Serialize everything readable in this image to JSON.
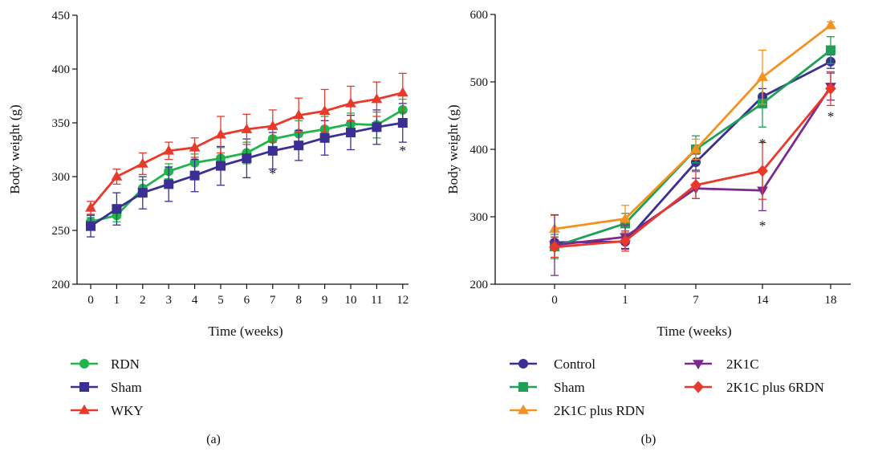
{
  "chart_data": [
    {
      "type": "line",
      "panel_label": "(a)",
      "xlabel": "Time (weeks)",
      "ylabel": "Body weight (g)",
      "x": [
        0,
        1,
        2,
        3,
        4,
        5,
        6,
        7,
        8,
        9,
        10,
        11,
        12
      ],
      "x_tick_labels": [
        "0",
        "1",
        "2",
        "3",
        "4",
        "5",
        "6",
        "7",
        "8",
        "9",
        "10",
        "11",
        "12"
      ],
      "ylim": [
        200,
        450
      ],
      "y_ticks": [
        200,
        250,
        300,
        350,
        400,
        450
      ],
      "grid": false,
      "legend_position": "bottom",
      "series": [
        {
          "name": "RDN",
          "color": "#1fb54a",
          "marker": "circle",
          "values": [
            258,
            264,
            289,
            305,
            313,
            317,
            322,
            335,
            340,
            344,
            349,
            348,
            362
          ],
          "err": [
            4,
            6,
            8,
            7,
            8,
            10,
            10,
            10,
            12,
            12,
            10,
            12,
            10
          ]
        },
        {
          "name": "Sham",
          "color": "#3b2f93",
          "marker": "square",
          "values": [
            254,
            270,
            285,
            293,
            301,
            310,
            317,
            324,
            329,
            336,
            341,
            346,
            350
          ],
          "err": [
            10,
            15,
            15,
            16,
            15,
            18,
            18,
            17,
            14,
            16,
            16,
            16,
            18
          ]
        },
        {
          "name": "WKY",
          "color": "#e8392a",
          "marker": "triangle",
          "values": [
            271,
            300,
            312,
            324,
            327,
            339,
            344,
            347,
            357,
            361,
            368,
            372,
            378
          ],
          "err": [
            6,
            7,
            10,
            8,
            9,
            17,
            14,
            15,
            16,
            20,
            16,
            16,
            18
          ]
        }
      ],
      "annotations": [
        {
          "text": "*",
          "x": 7,
          "y": 305
        },
        {
          "text": "*",
          "x": 12,
          "y": 326
        }
      ]
    },
    {
      "type": "line",
      "panel_label": "(b)",
      "xlabel": "Time (weeks)",
      "ylabel": "Body weight (g)",
      "categories": [
        "0",
        "1",
        "7",
        "14",
        "18"
      ],
      "ylim": [
        200,
        600
      ],
      "y_ticks": [
        200,
        300,
        400,
        500,
        600
      ],
      "grid": false,
      "legend_position": "bottom",
      "series": [
        {
          "name": "Control",
          "color": "#3b2f93",
          "marker": "circle",
          "values": [
            262,
            263,
            381,
            478,
            530
          ],
          "err": [
            8,
            10,
            12,
            12,
            10
          ]
        },
        {
          "name": "Sham",
          "color": "#1fa055",
          "marker": "square",
          "values": [
            256,
            290,
            400,
            468,
            547
          ],
          "err": [
            18,
            15,
            20,
            35,
            20
          ]
        },
        {
          "name": "2K1C plus RDN",
          "color": "#f39221",
          "marker": "triangle",
          "values": [
            282,
            297,
            400,
            507,
            584
          ],
          "err": [
            20,
            20,
            15,
            40,
            5
          ]
        },
        {
          "name": "2K1C",
          "color": "#7b2a8c",
          "marker": "triangle-down",
          "values": [
            258,
            270,
            342,
            339,
            493
          ],
          "err": [
            45,
            18,
            15,
            30,
            20
          ]
        },
        {
          "name": "2K1C plus 6RDN",
          "color": "#e8392a",
          "marker": "diamond",
          "values": [
            255,
            264,
            347,
            368,
            490
          ],
          "err": [
            15,
            15,
            20,
            42,
            25
          ]
        }
      ],
      "annotations": [
        {
          "text": "*",
          "x": "14",
          "y": 412
        },
        {
          "text": "*",
          "x": "14",
          "y": 290
        },
        {
          "text": "*",
          "x": "18",
          "y": 452
        }
      ]
    }
  ]
}
